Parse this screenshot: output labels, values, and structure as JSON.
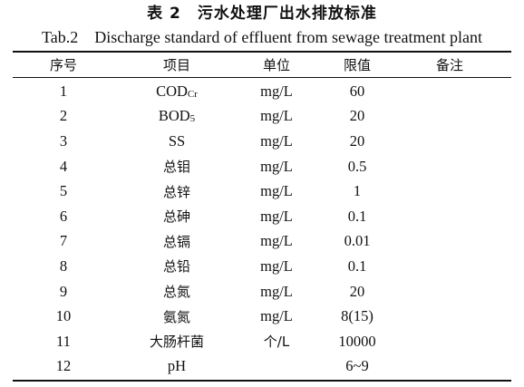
{
  "title_cn": "表 2　污水处理厂出水排放标准",
  "title_en": "Tab.2　Discharge standard of effluent from sewage treatment plant",
  "headers": [
    "序号",
    "项目",
    "单位",
    "限值",
    "备注"
  ],
  "rows": [
    {
      "no": "1",
      "item": "COD",
      "item_sub": "Cr",
      "unit": "mg/L",
      "limit": "60",
      "note": ""
    },
    {
      "no": "2",
      "item": "BOD",
      "item_sub": "5",
      "unit": "mg/L",
      "limit": "20",
      "note": ""
    },
    {
      "no": "3",
      "item": "SS",
      "item_sub": "",
      "unit": "mg/L",
      "limit": "20",
      "note": ""
    },
    {
      "no": "4",
      "item": "总钼",
      "item_sub": "",
      "unit": "mg/L",
      "limit": "0.5",
      "note": ""
    },
    {
      "no": "5",
      "item": "总锌",
      "item_sub": "",
      "unit": "mg/L",
      "limit": "1",
      "note": ""
    },
    {
      "no": "6",
      "item": "总砷",
      "item_sub": "",
      "unit": "mg/L",
      "limit": "0.1",
      "note": ""
    },
    {
      "no": "7",
      "item": "总镉",
      "item_sub": "",
      "unit": "mg/L",
      "limit": "0.01",
      "note": ""
    },
    {
      "no": "8",
      "item": "总铅",
      "item_sub": "",
      "unit": "mg/L",
      "limit": "0.1",
      "note": ""
    },
    {
      "no": "9",
      "item": "总氮",
      "item_sub": "",
      "unit": "mg/L",
      "limit": "20",
      "note": ""
    },
    {
      "no": "10",
      "item": "氨氮",
      "item_sub": "",
      "unit": "mg/L",
      "limit": "8(15)",
      "note": ""
    },
    {
      "no": "11",
      "item": "大肠杆菌",
      "item_sub": "",
      "unit": "个/L",
      "limit": "10000",
      "note": ""
    },
    {
      "no": "12",
      "item": "pH",
      "item_sub": "",
      "unit": "",
      "limit": "6~9",
      "note": ""
    }
  ]
}
